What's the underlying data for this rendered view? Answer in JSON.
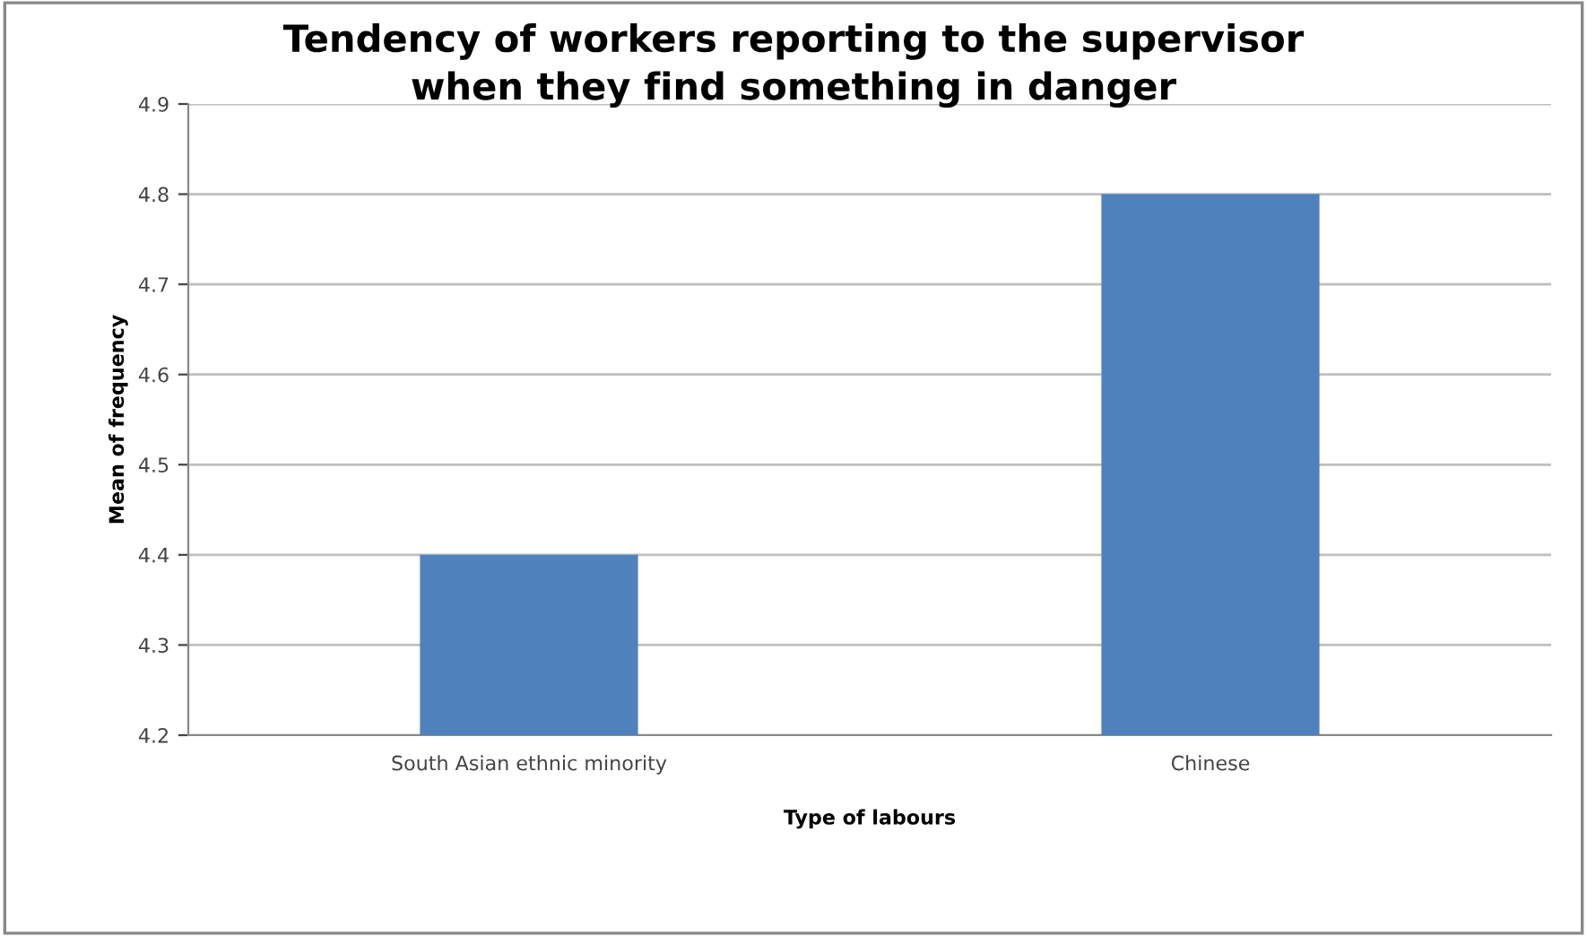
{
  "chart_data": {
    "type": "bar",
    "title": "Tendency of workers reporting to the supervisor\nwhen they find something in danger",
    "categories": [
      "South Asian ethnic minority",
      "Chinese"
    ],
    "values": [
      4.4,
      4.8
    ],
    "color": "#4f81bd",
    "xlabel": "Type of labours",
    "ylabel": "Mean of frequency",
    "ylim": [
      4.2,
      4.9
    ],
    "yticks": [
      4.2,
      4.3,
      4.4,
      4.5,
      4.6,
      4.7,
      4.8,
      4.9
    ],
    "grid": "y",
    "legend": false
  }
}
